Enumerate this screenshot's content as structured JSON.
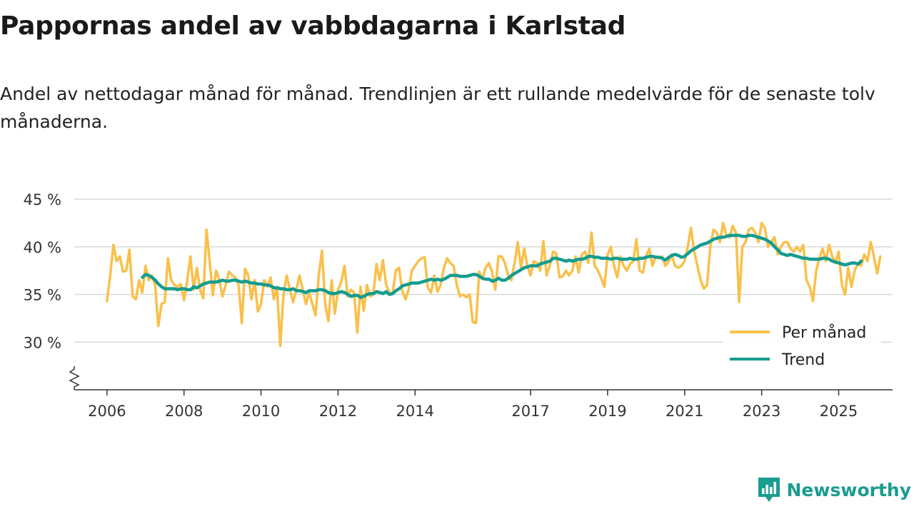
{
  "header": {
    "title": "Pappornas andel av vabbdagarna i Karlstad",
    "subtitle": "Andel av nettodagar månad för månad. Trendlinjen är ett rullande medelvärde för de senaste tolv månaderna."
  },
  "brand": {
    "name": "Newsworthy",
    "icon": "newsworthy-chart-icon",
    "color": "#1a9c8f"
  },
  "chart_data": {
    "type": "line",
    "title": "Pappornas andel av vabbdagarna i Karlstad",
    "xlabel": "",
    "ylabel": "",
    "x_start": 2006.0,
    "x_step": 0.08333,
    "xlim": [
      2005.15,
      2026.4
    ],
    "ylim": [
      25,
      45
    ],
    "y_ticks": [
      30,
      35,
      40,
      45
    ],
    "y_tick_labels": [
      "30 %",
      "35 %",
      "40 %",
      "45 %"
    ],
    "x_ticks": [
      2006,
      2008,
      2010,
      2012,
      2014,
      2017,
      2019,
      2021,
      2023,
      2025
    ],
    "x_tick_labels": [
      "2006",
      "2008",
      "2010",
      "2012",
      "2014",
      "2017",
      "2019",
      "2021",
      "2023",
      "2025"
    ],
    "grid": true,
    "axis_break": true,
    "legend_position": "bottom-right",
    "legend": [
      "Per månad",
      "Trend"
    ],
    "series": [
      {
        "name": "Per månad",
        "color": "#f9c04a",
        "x_start": 2006.0,
        "values": [
          34.3,
          37.0,
          40.2,
          38.5,
          39.0,
          37.4,
          37.5,
          39.7,
          34.8,
          34.5,
          36.5,
          35.2,
          38.0,
          36.5,
          37.0,
          36.0,
          31.7,
          34.0,
          34.2,
          38.8,
          36.5,
          36.0,
          35.8,
          36.1,
          34.4,
          36.5,
          39.0,
          35.5,
          37.8,
          35.5,
          34.6,
          41.8,
          38.5,
          34.9,
          37.5,
          36.5,
          34.8,
          36.0,
          37.4,
          37.0,
          36.8,
          36.0,
          32.0,
          37.7,
          37.0,
          34.5,
          36.5,
          33.2,
          34.0,
          36.5,
          35.8,
          36.8,
          34.5,
          35.8,
          29.6,
          35.0,
          37.0,
          35.5,
          34.2,
          35.5,
          37.0,
          35.5,
          34.0,
          35.2,
          34.0,
          32.8,
          37.0,
          39.6,
          34.0,
          32.2,
          36.5,
          33.0,
          35.5,
          36.3,
          38.0,
          34.8,
          35.5,
          35.2,
          31.0,
          35.8,
          33.3,
          36.0,
          34.8,
          35.0,
          38.2,
          36.5,
          38.6,
          36.0,
          35.2,
          35.1,
          37.5,
          37.8,
          35.4,
          34.5,
          35.5,
          37.5,
          38.0,
          38.5,
          38.8,
          38.9,
          35.7,
          35.2,
          37.0,
          35.3,
          36.0,
          37.8,
          38.8,
          38.3,
          38.0,
          36.0,
          34.8,
          35.0,
          34.7,
          35.0,
          32.1,
          32.0,
          37.4,
          36.6,
          37.8,
          38.3,
          37.4,
          35.5,
          39.0,
          39.0,
          38.3,
          37.0,
          36.5,
          38.3,
          40.5,
          37.8,
          39.8,
          38.0,
          37.0,
          38.5,
          38.3,
          37.5,
          40.6,
          37.0,
          38.0,
          39.5,
          39.3,
          36.8,
          36.9,
          37.5,
          37.0,
          37.5,
          39.0,
          37.3,
          39.2,
          39.5,
          38.3,
          41.5,
          38.0,
          37.5,
          36.7,
          35.8,
          39.2,
          40.0,
          38.0,
          36.8,
          39.0,
          38.0,
          37.5,
          38.2,
          38.5,
          40.8,
          37.5,
          37.3,
          39.0,
          39.8,
          38.0,
          39.0,
          38.8,
          39.0,
          38.0,
          38.4,
          39.2,
          38.0,
          37.8,
          38.0,
          38.5,
          40.0,
          42.0,
          39.5,
          38.0,
          36.5,
          35.6,
          36.0,
          40.0,
          41.8,
          41.5,
          40.5,
          42.5,
          41.2,
          41.0,
          42.2,
          41.5,
          34.2,
          40.0,
          40.5,
          41.8,
          42.0,
          41.5,
          40.5,
          42.5,
          42.0,
          40.0,
          40.5,
          41.0,
          39.2,
          40.0,
          40.5,
          40.5,
          39.8,
          39.5,
          40.0,
          39.5,
          40.2,
          36.5,
          35.8,
          34.3,
          37.5,
          38.8,
          39.8,
          38.5,
          40.2,
          39.0,
          38.3,
          39.5,
          36.0,
          35.0,
          37.8,
          35.8,
          37.5,
          38.2,
          38.0,
          39.2,
          38.5,
          40.5,
          39.0,
          37.2,
          39.0
        ]
      },
      {
        "name": "Trend",
        "color": "#149c8e",
        "x_start": 2006.92,
        "values": [
          36.8,
          37.1,
          37.0,
          36.8,
          36.5,
          36.1,
          35.8,
          35.6,
          35.6,
          35.6,
          35.6,
          35.5,
          35.6,
          35.6,
          35.5,
          35.5,
          35.8,
          35.7,
          35.9,
          36.1,
          36.2,
          36.3,
          36.3,
          36.3,
          36.4,
          36.5,
          36.4,
          36.4,
          36.5,
          36.5,
          36.4,
          36.3,
          36.4,
          36.3,
          36.2,
          36.2,
          36.1,
          36.1,
          36.0,
          36.0,
          35.9,
          35.7,
          35.7,
          35.6,
          35.6,
          35.5,
          35.5,
          35.6,
          35.4,
          35.4,
          35.3,
          35.2,
          35.4,
          35.4,
          35.4,
          35.5,
          35.5,
          35.4,
          35.2,
          35.1,
          35.1,
          35.2,
          35.3,
          35.2,
          35.0,
          34.8,
          34.9,
          34.9,
          34.7,
          34.8,
          35.0,
          35.1,
          35.1,
          35.3,
          35.2,
          35.1,
          35.3,
          35.0,
          35.1,
          35.4,
          35.6,
          35.9,
          36.0,
          36.1,
          36.2,
          36.2,
          36.2,
          36.3,
          36.4,
          36.5,
          36.6,
          36.5,
          36.6,
          36.5,
          36.6,
          36.8,
          37.0,
          37.0,
          37.0,
          36.9,
          36.9,
          36.9,
          37.0,
          37.1,
          37.1,
          36.9,
          36.7,
          36.6,
          36.6,
          36.4,
          36.5,
          36.7,
          36.5,
          36.5,
          36.7,
          37.0,
          37.2,
          37.4,
          37.6,
          37.8,
          37.9,
          38.0,
          38.0,
          38.0,
          38.2,
          38.3,
          38.4,
          38.5,
          38.8,
          38.8,
          38.7,
          38.6,
          38.5,
          38.6,
          38.5,
          38.6,
          38.7,
          38.7,
          38.8,
          39.0,
          39.0,
          38.9,
          38.9,
          38.8,
          38.8,
          38.8,
          38.7,
          38.8,
          38.8,
          38.7,
          38.7,
          38.7,
          38.8,
          38.7,
          38.7,
          38.8,
          38.8,
          38.9,
          39.0,
          39.0,
          38.9,
          38.9,
          38.8,
          38.6,
          38.9,
          39.1,
          39.2,
          39.1,
          38.9,
          39.0,
          39.3,
          39.6,
          39.8,
          40.0,
          40.2,
          40.3,
          40.4,
          40.6,
          40.8,
          40.9,
          41.0,
          41.0,
          41.1,
          41.2,
          41.2,
          41.2,
          41.2,
          41.1,
          41.1,
          41.2,
          41.2,
          41.1,
          41.0,
          40.9,
          40.8,
          40.6,
          40.4,
          40.0,
          39.7,
          39.3,
          39.2,
          39.1,
          39.2,
          39.1,
          39.0,
          38.9,
          38.8,
          38.8,
          38.7,
          38.7,
          38.7,
          38.7,
          38.8,
          38.8,
          38.7,
          38.5,
          38.4,
          38.3,
          38.2,
          38.1,
          38.2,
          38.3,
          38.3,
          38.2,
          38.5
        ]
      }
    ]
  }
}
